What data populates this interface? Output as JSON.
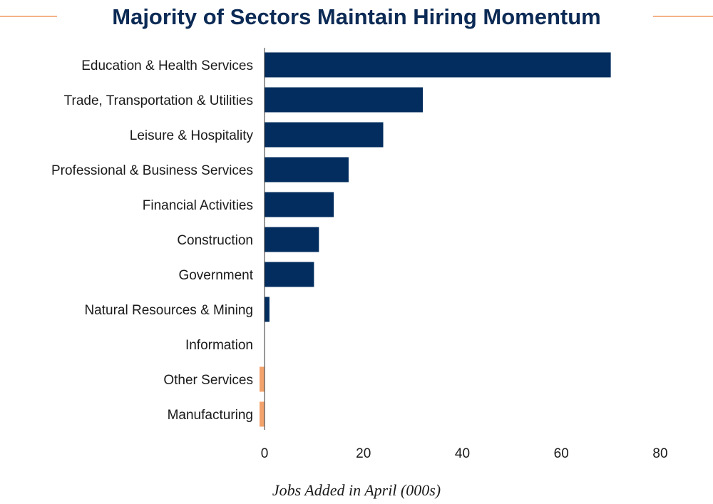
{
  "colors": {
    "positive_bar": "#022d5e",
    "negative_bar": "#f2a26b",
    "title_rule": "#ef9a5e",
    "title_text": "#0b2a55",
    "label_text": "#1a1a1a",
    "axis_line": "#333333"
  },
  "chart_data": {
    "type": "bar",
    "orientation": "horizontal",
    "title": "Majority of Sectors Maintain Hiring Momentum",
    "xlabel": "Jobs Added in April (000s)",
    "ylabel": "",
    "categories": [
      "Education & Health Services",
      "Trade, Transportation & Utilities",
      "Leisure & Hospitality",
      "Professional & Business Services",
      "Financial Activities",
      "Construction",
      "Government",
      "Natural Resources & Mining",
      "Information",
      "Other Services",
      "Manufacturing"
    ],
    "values": [
      70,
      32,
      24,
      17,
      14,
      11,
      10,
      1,
      0,
      -1,
      -1
    ],
    "xlim": [
      0,
      80
    ],
    "xticks": [
      0,
      20,
      40,
      60,
      80
    ],
    "grid": false,
    "legend": "none"
  }
}
